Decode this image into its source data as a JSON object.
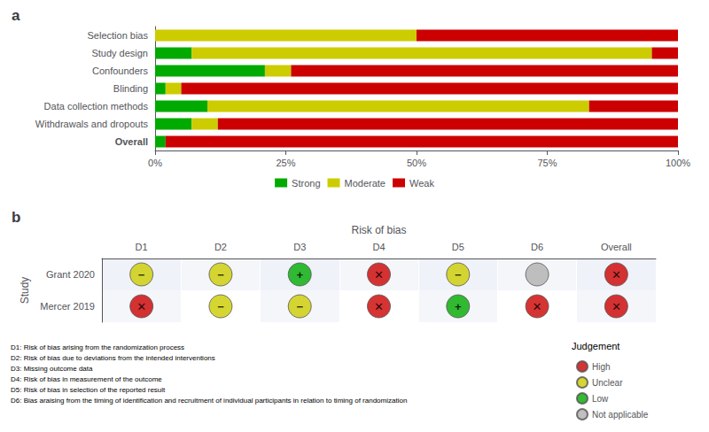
{
  "chart_data": [
    {
      "type": "bar",
      "title": "a",
      "orientation": "horizontal",
      "stacked": true,
      "categories": [
        "Selection bias",
        "Study design",
        "Confounders",
        "Blinding",
        "Data collection methods",
        "Withdrawals and dropouts",
        "Overall"
      ],
      "series": [
        {
          "name": "Strong",
          "color": "#00aa00",
          "values": [
            0,
            7,
            21,
            2,
            10,
            7,
            2
          ]
        },
        {
          "name": "Moderate",
          "color": "#cccc00",
          "values": [
            50,
            88,
            5,
            3,
            73,
            5,
            0
          ]
        },
        {
          "name": "Weak",
          "color": "#cc0000",
          "values": [
            50,
            5,
            74,
            95,
            17,
            88,
            98
          ]
        }
      ],
      "xlim": [
        0,
        100
      ],
      "xticks": [
        {
          "value": 0,
          "label": "0%"
        },
        {
          "value": 25,
          "label": "25%"
        },
        {
          "value": 50,
          "label": "50%"
        },
        {
          "value": 75,
          "label": "75%"
        },
        {
          "value": 100,
          "label": "100%"
        }
      ],
      "legend": "bottom",
      "grid": false
    },
    {
      "type": "table",
      "title": "b",
      "xlabel": "Risk of bias",
      "ylabel": "Study",
      "rows": [
        "Grant 2020",
        "Mercer 2019"
      ],
      "columns": [
        "D1",
        "D2",
        "D3",
        "D4",
        "D5",
        "D6",
        "Overall"
      ],
      "cells": [
        [
          "Unclear",
          "Unclear",
          "Low",
          "High",
          "Unclear",
          "Not applicable",
          "High"
        ],
        [
          "High",
          "Unclear",
          "Unclear",
          "High",
          "Low",
          "High",
          "High"
        ]
      ],
      "legend_title": "Judgement",
      "judgements": [
        {
          "name": "High",
          "color": "#cc0000",
          "symbol": "✕"
        },
        {
          "name": "Unclear",
          "color": "#cccc00",
          "symbol": "−"
        },
        {
          "name": "Low",
          "color": "#00aa00",
          "symbol": "+"
        },
        {
          "name": "Not applicable",
          "color": "#b0b0b0",
          "symbol": null
        }
      ],
      "footnotes": [
        "D1: Risk of bias arising from the randomization process",
        "D2: Risk of bias due to deviations from the intended interventions",
        "D3: Missing outcome data",
        "D4: Risk of bias in measurement of the outcome",
        "D5: Risk of bias in selection of the reported result",
        "D6: Bias araising from the timing of identification and recruitment of individual participants in relation to timing of randomization"
      ]
    }
  ]
}
